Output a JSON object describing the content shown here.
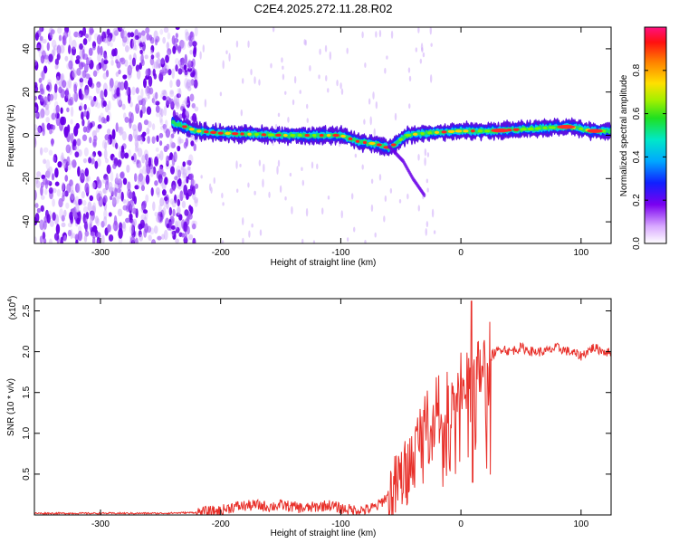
{
  "title": "C2E4.2025.272.11.28.R02",
  "colors": {
    "snr_line": "#e8302a",
    "scatter_purple": "#7a00f0",
    "axis": "#000000"
  },
  "chart_data": [
    {
      "type": "heatmap",
      "title": "C2E4.2025.272.11.28.R02",
      "xlabel": "Height of straight line (km)",
      "ylabel": "Frequency (Hz)",
      "xlim": [
        -355,
        125
      ],
      "ylim": [
        -50,
        50
      ],
      "x_ticks": [
        "-300",
        "-200",
        "-100",
        "0",
        "100"
      ],
      "y_ticks": [
        "-40",
        "-20",
        "0",
        "20",
        "40"
      ],
      "colorbar": {
        "label": "Normalized spectral amplitude",
        "ticks": [
          "0.0",
          "0.2",
          "0.4",
          "0.6",
          "0.8"
        ],
        "range": [
          0,
          1
        ]
      },
      "features": {
        "noise_region_x": [
          -355,
          -220
        ],
        "ridge": [
          {
            "x": -240,
            "y": 6
          },
          {
            "x": -220,
            "y": 2
          },
          {
            "x": -200,
            "y": 1
          },
          {
            "x": -150,
            "y": 0
          },
          {
            "x": -120,
            "y": 0
          },
          {
            "x": -100,
            "y": 0
          },
          {
            "x": -85,
            "y": -3
          },
          {
            "x": -70,
            "y": -4
          },
          {
            "x": -60,
            "y": -6
          },
          {
            "x": -45,
            "y": 0
          },
          {
            "x": -30,
            "y": 1
          },
          {
            "x": 0,
            "y": 2
          },
          {
            "x": 25,
            "y": 2
          },
          {
            "x": 60,
            "y": 3
          },
          {
            "x": 90,
            "y": 4
          },
          {
            "x": 110,
            "y": 2
          },
          {
            "x": 125,
            "y": 2
          }
        ],
        "branch": [
          {
            "x": -60,
            "y": -5
          },
          {
            "x": -48,
            "y": -12
          },
          {
            "x": -40,
            "y": -20
          },
          {
            "x": -30,
            "y": -28
          }
        ]
      }
    },
    {
      "type": "line",
      "xlabel": "Height of straight line (km)",
      "ylabel": "SNR (10 * v/v)",
      "y_multiplier": "(x10",
      "y_multiplier_exp": "4",
      "xlim": [
        -355,
        125
      ],
      "ylim": [
        0,
        2.65
      ],
      "x_ticks": [
        "-300",
        "-200",
        "-100",
        "0",
        "100"
      ],
      "y_ticks": [
        "0.5",
        "1.0",
        "1.5",
        "2.0",
        "2.5"
      ],
      "series": [
        {
          "x": [
            -355,
            -300,
            -250,
            -220,
            -200,
            -190,
            -170,
            -160,
            -150,
            -130,
            -120,
            -110,
            -100,
            -90,
            -80,
            -70,
            -60,
            -55,
            -50,
            -45,
            -40,
            -35,
            -30,
            -25,
            -20,
            -15,
            -10,
            -5,
            0,
            5,
            8,
            10,
            15,
            20,
            25,
            30,
            35,
            40,
            50,
            60,
            70,
            80,
            90,
            100,
            110,
            125
          ],
          "y": [
            0.02,
            0.02,
            0.02,
            0.03,
            0.05,
            0.1,
            0.12,
            0.1,
            0.12,
            0.08,
            0.1,
            0.12,
            0.08,
            0.06,
            0.06,
            0.1,
            0.25,
            0.3,
            0.45,
            0.5,
            0.7,
            0.9,
            1.2,
            1.0,
            1.35,
            1.1,
            1.45,
            1.3,
            1.55,
            1.6,
            1.5,
            1.7,
            1.75,
            1.85,
            1.95,
            2.0,
            2.05,
            2.0,
            2.05,
            2.0,
            2.0,
            2.05,
            2.0,
            1.95,
            2.05,
            1.98
          ]
        }
      ]
    }
  ]
}
